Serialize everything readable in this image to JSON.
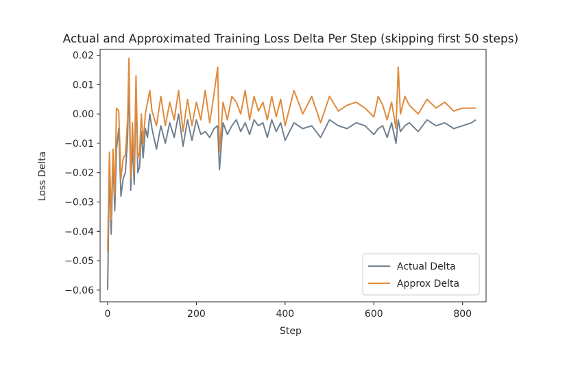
{
  "chart_data": {
    "type": "line",
    "title": "Actual and Approximated Training Loss Delta Per Step (skipping first 50 steps)",
    "xlabel": "Step",
    "ylabel": "Loss Delta",
    "xlim": [
      -17,
      853
    ],
    "ylim": [
      -0.064,
      0.022
    ],
    "xticks": [
      0,
      200,
      400,
      600,
      800
    ],
    "xtick_labels": [
      "0",
      "200",
      "400",
      "600",
      "800"
    ],
    "yticks": [
      -0.06,
      -0.05,
      -0.04,
      -0.03,
      -0.02,
      -0.01,
      0.0,
      0.01,
      0.02
    ],
    "ytick_labels": [
      "−0.06",
      "−0.05",
      "−0.04",
      "−0.03",
      "−0.02",
      "−0.01",
      "0.00",
      "0.01",
      "0.02"
    ],
    "grid": false,
    "legend": "lower-right",
    "series": [
      {
        "name": "Actual Delta",
        "color": "#708090",
        "x": [
          0,
          4,
          8,
          12,
          16,
          20,
          25,
          30,
          35,
          40,
          45,
          48,
          52,
          56,
          60,
          64,
          68,
          72,
          76,
          80,
          85,
          90,
          95,
          100,
          110,
          120,
          130,
          140,
          150,
          160,
          170,
          180,
          190,
          200,
          210,
          220,
          230,
          240,
          248,
          252,
          260,
          270,
          280,
          290,
          300,
          310,
          320,
          330,
          340,
          350,
          360,
          370,
          380,
          390,
          400,
          420,
          440,
          460,
          480,
          500,
          520,
          540,
          560,
          580,
          600,
          610,
          620,
          630,
          640,
          650,
          655,
          660,
          670,
          680,
          700,
          720,
          740,
          760,
          780,
          800,
          820,
          830
        ],
        "y": [
          -0.06,
          -0.018,
          -0.041,
          -0.015,
          -0.033,
          -0.012,
          -0.005,
          -0.028,
          -0.022,
          -0.02,
          -0.008,
          0.012,
          -0.026,
          -0.01,
          -0.024,
          0.008,
          -0.02,
          -0.018,
          -0.006,
          -0.015,
          -0.005,
          -0.008,
          0.0,
          -0.005,
          -0.012,
          -0.004,
          -0.01,
          -0.003,
          -0.008,
          0.0,
          -0.011,
          -0.002,
          -0.009,
          -0.002,
          -0.007,
          -0.006,
          -0.008,
          -0.005,
          -0.004,
          -0.019,
          -0.003,
          -0.007,
          -0.004,
          -0.002,
          -0.006,
          -0.003,
          -0.007,
          -0.002,
          -0.004,
          -0.003,
          -0.008,
          -0.002,
          -0.006,
          -0.003,
          -0.009,
          -0.003,
          -0.005,
          -0.004,
          -0.008,
          -0.002,
          -0.004,
          -0.005,
          -0.003,
          -0.004,
          -0.007,
          -0.005,
          -0.004,
          -0.008,
          -0.003,
          -0.01,
          -0.002,
          -0.006,
          -0.004,
          -0.003,
          -0.006,
          -0.002,
          -0.004,
          -0.003,
          -0.005,
          -0.004,
          -0.003,
          -0.002
        ]
      },
      {
        "name": "Approx Delta",
        "color": "#E08A3C",
        "x": [
          0,
          4,
          8,
          12,
          16,
          20,
          25,
          30,
          35,
          40,
          45,
          48,
          52,
          56,
          60,
          64,
          68,
          72,
          76,
          80,
          85,
          90,
          95,
          100,
          110,
          120,
          130,
          140,
          150,
          160,
          170,
          180,
          190,
          200,
          210,
          220,
          230,
          240,
          248,
          252,
          260,
          270,
          280,
          290,
          300,
          310,
          320,
          330,
          340,
          350,
          360,
          370,
          380,
          390,
          400,
          420,
          440,
          460,
          480,
          500,
          520,
          540,
          560,
          580,
          600,
          610,
          620,
          630,
          640,
          650,
          655,
          660,
          670,
          680,
          700,
          720,
          740,
          760,
          780,
          800,
          820,
          830
        ],
        "y": [
          -0.047,
          -0.013,
          -0.036,
          -0.012,
          -0.028,
          0.002,
          0.001,
          -0.022,
          -0.015,
          -0.014,
          -0.002,
          0.019,
          -0.022,
          -0.003,
          -0.02,
          0.013,
          -0.015,
          -0.013,
          0.0,
          -0.01,
          0.0,
          0.004,
          0.008,
          0.001,
          -0.004,
          0.006,
          -0.004,
          0.004,
          -0.002,
          0.008,
          -0.006,
          0.005,
          -0.004,
          0.004,
          -0.002,
          0.008,
          -0.003,
          0.007,
          0.016,
          -0.013,
          0.004,
          -0.002,
          0.006,
          0.004,
          0.0,
          0.008,
          -0.002,
          0.006,
          0.001,
          0.004,
          -0.002,
          0.006,
          -0.001,
          0.005,
          -0.004,
          0.008,
          0.0,
          0.006,
          -0.003,
          0.006,
          0.001,
          0.003,
          0.004,
          0.002,
          -0.001,
          0.006,
          0.003,
          -0.002,
          0.004,
          -0.005,
          0.016,
          0.0,
          0.006,
          0.003,
          0.0,
          0.005,
          0.002,
          0.004,
          0.001,
          0.002,
          0.002,
          0.002
        ]
      }
    ]
  }
}
